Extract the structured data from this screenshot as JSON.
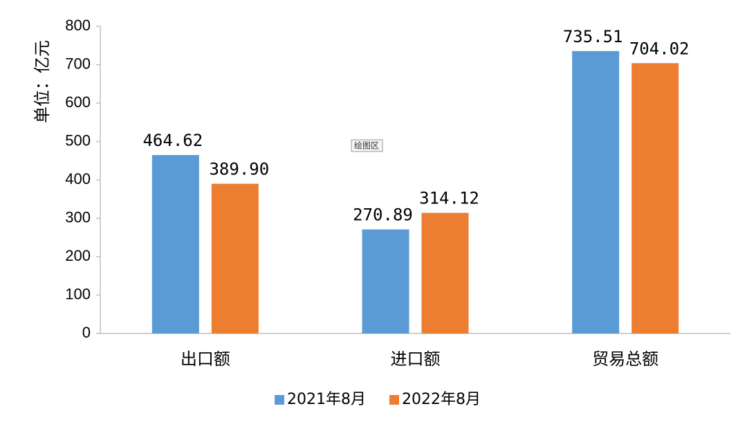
{
  "chart_data": {
    "type": "bar",
    "categories": [
      "出口额",
      "进口额",
      "贸易总额"
    ],
    "series": [
      {
        "name": "2021年8月",
        "values": [
          464.62,
          270.89,
          735.51
        ],
        "labels": [
          "464.62",
          "270.89",
          "735.51"
        ],
        "color": "#5b9bd5"
      },
      {
        "name": "2022年8月",
        "values": [
          389.9,
          314.12,
          704.02
        ],
        "labels": [
          "389.90",
          "314.12",
          "704.02"
        ],
        "color": "#ed7d31"
      }
    ],
    "ylabel": "单位：亿元",
    "ylim": [
      0,
      800
    ],
    "yticks": [
      "0",
      "100",
      "200",
      "300",
      "400",
      "500",
      "600",
      "700",
      "800"
    ],
    "legend_position": "bottom",
    "grid": false,
    "plot_area_tag": "绘图区"
  }
}
